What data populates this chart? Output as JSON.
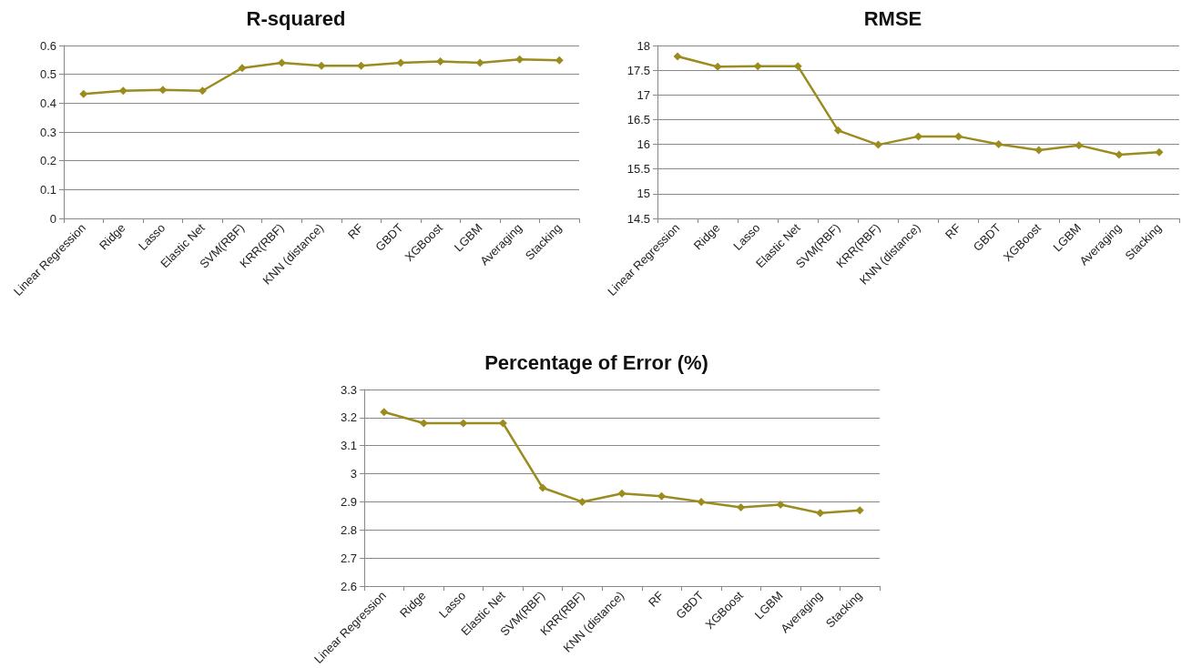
{
  "chart_data": [
    {
      "type": "line",
      "title": "R-squared",
      "categories": [
        "Linear Regression",
        "Ridge",
        "Lasso",
        "Elastic Net",
        "SVM(RBF)",
        "KRR(RBF)",
        "KNN (distance)",
        "RF",
        "GBDT",
        "XGBoost",
        "LGBM",
        "Averaging",
        "Stacking"
      ],
      "series": [
        {
          "color": "#9a8c1f",
          "values": [
            0.432,
            0.443,
            0.446,
            0.443,
            0.522,
            0.54,
            0.53,
            0.53,
            0.54,
            0.545,
            0.54,
            0.552,
            0.549
          ]
        }
      ],
      "ylim": [
        0,
        0.6
      ],
      "yticks": [
        0,
        0.1,
        0.2,
        0.3,
        0.4,
        0.5,
        0.6
      ],
      "grid": "y",
      "marker": "diamond",
      "line_style": "solid"
    },
    {
      "type": "line",
      "title": "RMSE",
      "categories": [
        "Linear Regression",
        "Ridge",
        "Lasso",
        "Elastic Net",
        "SVM(RBF)",
        "KRR(RBF)",
        "KNN (distance)",
        "RF",
        "GBDT",
        "XGBoost",
        "LGBM",
        "Averaging",
        "Stacking"
      ],
      "series": [
        {
          "color": "#9a8c1f",
          "values": [
            17.78,
            17.57,
            17.58,
            17.58,
            16.28,
            15.99,
            16.16,
            16.16,
            16.0,
            15.88,
            15.98,
            15.79,
            15.84
          ]
        }
      ],
      "ylim": [
        14.5,
        18
      ],
      "yticks": [
        14.5,
        15,
        15.5,
        16,
        16.5,
        17,
        17.5,
        18
      ],
      "grid": "y",
      "marker": "diamond",
      "line_style": "solid"
    },
    {
      "type": "line",
      "title": "Percentage of Error (%)",
      "categories": [
        "Linear Regression",
        "Ridge",
        "Lasso",
        "Elastic Net",
        "SVM(RBF)",
        "KRR(RBF)",
        "KNN (distance)",
        "RF",
        "GBDT",
        "XGBoost",
        "LGBM",
        "Averaging",
        "Stacking"
      ],
      "series": [
        {
          "color": "#9a8c1f",
          "values": [
            3.22,
            3.18,
            3.18,
            3.18,
            2.95,
            2.9,
            2.93,
            2.92,
            2.9,
            2.88,
            2.89,
            2.86,
            2.87
          ]
        }
      ],
      "ylim": [
        2.6,
        3.3
      ],
      "yticks": [
        2.6,
        2.7,
        2.8,
        2.9,
        3,
        3.1,
        3.2,
        3.3
      ],
      "grid": "y",
      "marker": "diamond",
      "line_style": "solid"
    }
  ]
}
